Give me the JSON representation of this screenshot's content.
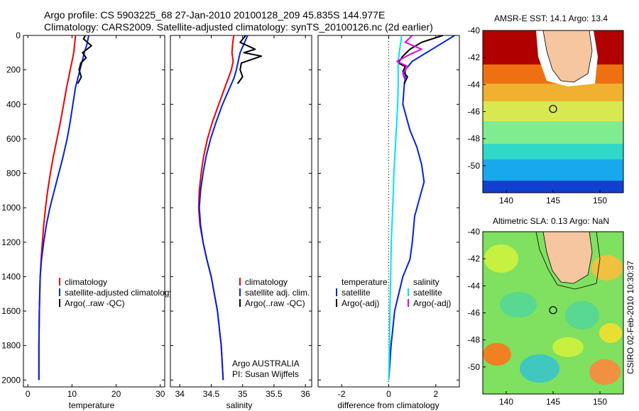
{
  "header": {
    "line1": "Argo profile: CS 5903225_68 27-Jan-2010 20100128_209 45.835S 144.977E",
    "line2": "Climatology: CARS2009. Satellite-adjusted climatology: synTS_20100126.nc (2d earlier)"
  },
  "note": {
    "line1": "Argo AUSTRALIA",
    "line2": "PI: Susan Wijffels"
  },
  "stamp": "CSIRO 02-Feb-2010 10:30:37",
  "colors": {
    "climatology": "#ee0000",
    "satellite": "#0022dd",
    "argo": "#000000",
    "satellite_salinity": "#00e5ee",
    "argo_salinity": "#e000e0",
    "land": "#f5c6a0"
  },
  "chart_data": [
    {
      "type": "line",
      "xlabel": "temperature",
      "xlim": [
        -1,
        31
      ],
      "xticks": [
        0,
        10,
        20,
        30
      ],
      "ylim": [
        0,
        2040
      ],
      "yticks": [
        0,
        200,
        400,
        600,
        800,
        1000,
        1200,
        1400,
        1600,
        1800,
        2000
      ],
      "y_reversed": true,
      "legend_entries": [
        "climatology",
        "satellite-adjusted climatology",
        "Argo(..raw -QC)"
      ],
      "series": [
        {
          "name": "climatology",
          "color": "#ee0000",
          "x": [
            10.8,
            10.6,
            10.4,
            10.0,
            9.6,
            9.2,
            8.8,
            8.1,
            7.4,
            6.6,
            5.8,
            5.1,
            4.5,
            4.0,
            3.6,
            3.3,
            3.0,
            2.8,
            2.6,
            2.5,
            2.5
          ],
          "y": [
            0,
            50,
            100,
            150,
            200,
            250,
            300,
            400,
            500,
            600,
            700,
            800,
            900,
            1000,
            1100,
            1200,
            1300,
            1400,
            1600,
            1800,
            2000
          ]
        },
        {
          "name": "satellite-adjusted climatology",
          "color": "#0022dd",
          "x": [
            13.8,
            13.4,
            12.8,
            12.3,
            11.8,
            11.3,
            10.8,
            10.2,
            9.6,
            8.9,
            8.0,
            7.0,
            6.0,
            5.0,
            4.2,
            3.6,
            3.1,
            2.8,
            2.6,
            2.5,
            2.5
          ],
          "y": [
            0,
            50,
            100,
            150,
            200,
            250,
            300,
            400,
            500,
            600,
            700,
            800,
            900,
            1000,
            1100,
            1200,
            1300,
            1400,
            1600,
            1800,
            2000
          ]
        },
        {
          "name": "Argo(..raw -QC)",
          "color": "#000000",
          "x": [
            13.0,
            12.6,
            14.4,
            12.4,
            13.2,
            12.0,
            11.6,
            12.1,
            11.3
          ],
          "y": [
            0,
            20,
            60,
            100,
            130,
            160,
            200,
            240,
            280
          ]
        }
      ]
    },
    {
      "type": "line",
      "xlabel": "salinity",
      "xlim": [
        33.85,
        36.1
      ],
      "xticks": [
        34,
        34.5,
        35,
        35.5,
        36
      ],
      "ylim": [
        0,
        2040
      ],
      "y_reversed": true,
      "legend_entries": [
        "climatology",
        "satellite adj. clim.",
        "Argo(..raw -QC)"
      ],
      "series": [
        {
          "name": "climatology",
          "color": "#ee0000",
          "x": [
            34.86,
            34.84,
            34.83,
            34.85,
            34.82,
            34.77,
            34.72,
            34.62,
            34.52,
            34.44,
            34.38,
            34.34,
            34.31,
            34.3,
            34.32,
            34.37,
            34.43,
            34.5,
            34.6,
            34.66,
            34.69
          ],
          "y": [
            0,
            50,
            100,
            150,
            200,
            250,
            300,
            400,
            500,
            600,
            700,
            800,
            900,
            1000,
            1100,
            1200,
            1300,
            1400,
            1600,
            1800,
            2000
          ]
        },
        {
          "name": "satellite adj. clim.",
          "color": "#0022dd",
          "x": [
            35.08,
            35.02,
            34.96,
            34.93,
            34.9,
            34.86,
            34.8,
            34.68,
            34.58,
            34.49,
            34.42,
            34.37,
            34.33,
            34.31,
            34.33,
            34.37,
            34.43,
            34.5,
            34.6,
            34.66,
            34.69
          ],
          "y": [
            0,
            50,
            100,
            150,
            200,
            250,
            300,
            400,
            500,
            600,
            700,
            800,
            900,
            1000,
            1100,
            1200,
            1300,
            1400,
            1600,
            1800,
            2000
          ]
        },
        {
          "name": "Argo(..raw -QC)",
          "color": "#000000",
          "x": [
            35.05,
            34.96,
            35.2,
            35.02,
            35.3,
            34.98,
            34.96,
            35.0,
            34.92
          ],
          "y": [
            0,
            40,
            80,
            100,
            120,
            160,
            200,
            240,
            280
          ]
        }
      ]
    },
    {
      "type": "line",
      "xlabel": "difference from climatology",
      "xlim": [
        -3.0,
        3.0
      ],
      "xticks": [
        -2,
        0,
        2
      ],
      "ylim": [
        0,
        2040
      ],
      "y_reversed": true,
      "zero_line": "dotted",
      "legend_titles": [
        "temperature",
        "salinity"
      ],
      "legend_entries": [
        "satellite",
        "Argo(-adj)",
        "satellite",
        "Argo(-adj)"
      ],
      "series": [
        {
          "name": "satellite",
          "group": "temperature",
          "color": "#0022dd",
          "x": [
            2.8,
            2.2,
            1.6,
            1.0,
            0.7,
            0.7,
            0.65,
            0.6,
            0.9,
            1.2,
            1.4,
            1.5,
            1.3,
            1.1,
            1.0,
            0.9,
            0.6,
            0.25,
            0.1,
            0.0
          ],
          "y": [
            0,
            50,
            100,
            150,
            200,
            250,
            300,
            400,
            550,
            650,
            750,
            850,
            950,
            1050,
            1200,
            1300,
            1400,
            1600,
            1800,
            2000
          ]
        },
        {
          "name": "Argo(-adj)",
          "group": "temperature",
          "color": "#000000",
          "x": [
            2.3,
            1.4,
            0.9,
            0.6,
            0.4,
            0.7,
            0.6,
            0.8,
            0.65
          ],
          "y": [
            0,
            40,
            80,
            120,
            160,
            180,
            210,
            240,
            280
          ]
        },
        {
          "name": "satellite",
          "group": "salinity",
          "color": "#00e5ee",
          "x": [
            0.55,
            0.5,
            0.45,
            0.4,
            0.4,
            0.4,
            0.4,
            0.38,
            0.34,
            0.3,
            0.26,
            0.22,
            0.2,
            0.17,
            0.14,
            0.11,
            0.08,
            0.05,
            0.03,
            0.0
          ],
          "y": [
            0,
            50,
            100,
            150,
            200,
            250,
            300,
            400,
            500,
            600,
            700,
            800,
            900,
            1000,
            1100,
            1200,
            1400,
            1600,
            1800,
            2000
          ]
        },
        {
          "name": "Argo(-adj)",
          "group": "salinity",
          "color": "#e000e0",
          "x": [
            1.0,
            0.7,
            1.4,
            0.9,
            0.35,
            0.8,
            0.6,
            0.7
          ],
          "y": [
            0,
            40,
            80,
            110,
            150,
            180,
            220,
            260
          ]
        }
      ]
    },
    {
      "type": "heatmap",
      "title": "AMSR-E SST: 14.1 Argo: 13.4",
      "xlim": [
        137.5,
        152.5
      ],
      "ylim": [
        -52,
        -40
      ],
      "xticks": [
        140,
        145,
        150
      ],
      "yticks": [
        -40,
        -42,
        -44,
        -46,
        -48,
        -50
      ],
      "marker": {
        "lon": 145,
        "lat": -45.8
      }
    },
    {
      "type": "heatmap",
      "title": "Altimetric SLA: 0.13 Argo: NaN",
      "xlim": [
        137.5,
        152.5
      ],
      "ylim": [
        -52,
        -40
      ],
      "xticks": [
        140,
        145,
        150
      ],
      "yticks": [
        -40,
        -42,
        -44,
        -46,
        -48,
        -50
      ],
      "marker": {
        "lon": 145,
        "lat": -45.8
      }
    }
  ]
}
